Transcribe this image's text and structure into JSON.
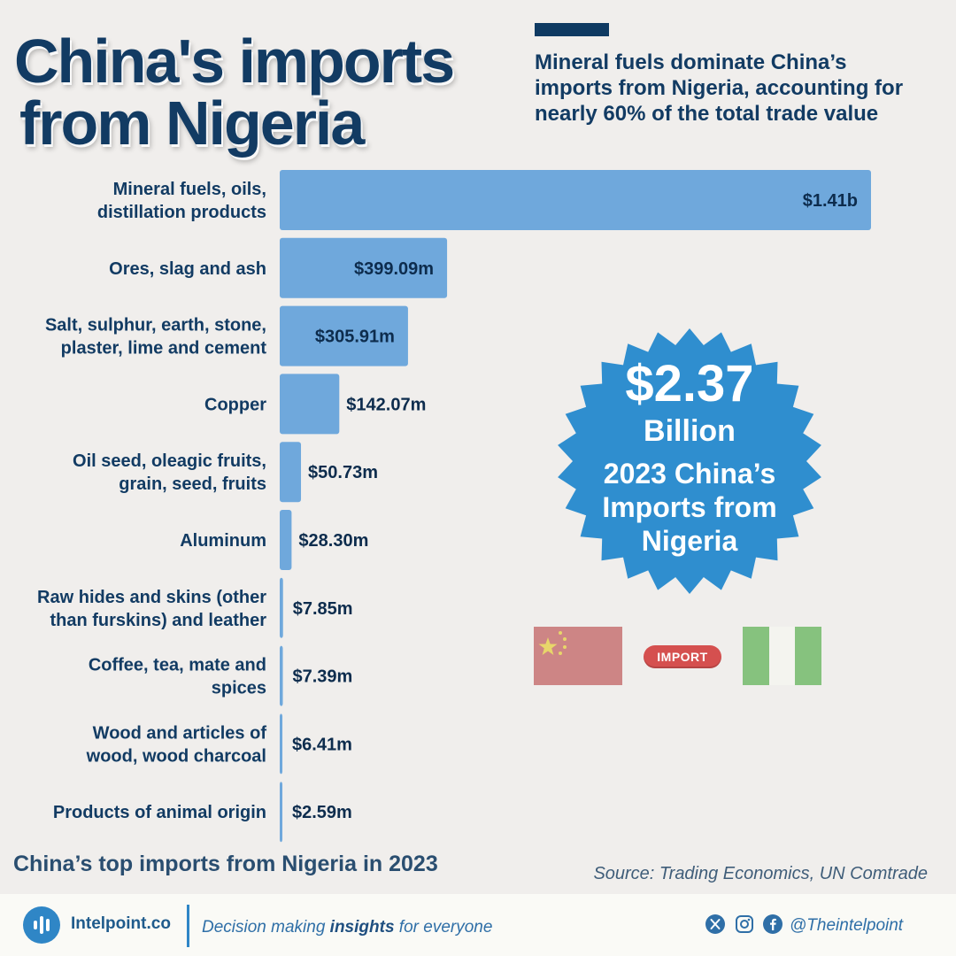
{
  "header": {
    "title_line1": "China's imports",
    "title_line2": "from Nigeria",
    "subtitle": "Mineral fuels dominate China’s imports from Nigeria, accounting for nearly 60% of the total trade value"
  },
  "chart_data": {
    "type": "bar",
    "orientation": "horizontal",
    "title": "China’s top imports from Nigeria in 2023",
    "categories": [
      [
        "Mineral fuels, oils,",
        "distillation products"
      ],
      [
        "Ores, slag and ash"
      ],
      [
        "Salt, sulphur, earth, stone,",
        "plaster, lime and cement"
      ],
      [
        "Copper"
      ],
      [
        "Oil seed, oleagic fruits,",
        "grain, seed, fruits"
      ],
      [
        "Aluminum"
      ],
      [
        "Raw hides and skins (other",
        "than furskins) and leather"
      ],
      [
        "Coffee, tea, mate and",
        "spices"
      ],
      [
        "Wood and articles of",
        "wood, wood charcoal"
      ],
      [
        "Products of animal origin"
      ]
    ],
    "values": [
      1410,
      399.09,
      305.91,
      142.07,
      50.73,
      28.3,
      7.85,
      7.39,
      6.41,
      2.59
    ],
    "unit": "US$ millions",
    "value_labels": [
      "$1.41b",
      "$399.09m",
      "$305.91m",
      "$142.07m",
      "$50.73m",
      "$28.30m",
      "$7.85m",
      "$7.39m",
      "$6.41m",
      "$2.59m"
    ],
    "labels_inside": [
      true,
      true,
      true,
      false,
      false,
      false,
      false,
      false,
      false,
      false
    ],
    "bar_color": "#6fa8dc",
    "grid": false,
    "legend": "none"
  },
  "badge": {
    "amount": "$2.37",
    "unit": "Billion",
    "description": "2023 China’s Imports from Nigeria",
    "color": "#2f8ecf"
  },
  "flags": {
    "from": "china-flag",
    "to": "nigeria-flag",
    "pill_label": "IMPORT"
  },
  "source": "Source: Trading Economics, UN Comtrade",
  "footer": {
    "brand": "Intelpoint.co",
    "tagline_pre": "Decision making ",
    "tagline_bold": "insights",
    "tagline_post": " for everyone",
    "handle": "@Theintelpoint",
    "social_icons": [
      "x-icon",
      "instagram-icon",
      "facebook-icon"
    ]
  },
  "colors": {
    "navy": "#123b63",
    "background": "#f0eeec",
    "accent_blue": "#2f86c6"
  }
}
